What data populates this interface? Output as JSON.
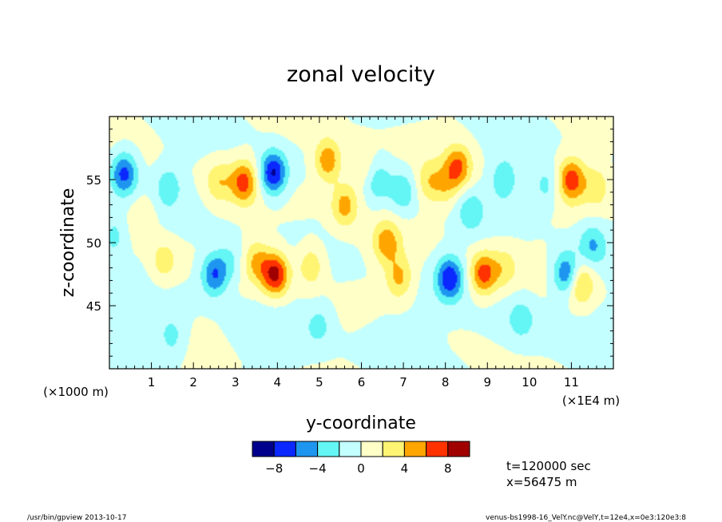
{
  "chart_data": {
    "type": "heatmap",
    "title": "zonal velocity",
    "xlabel": "y-coordinate",
    "ylabel": "z-coordinate",
    "x_unit_label": "(×1E4 m)",
    "y_unit_label": "(×1000 m)",
    "xlim": [
      0,
      12
    ],
    "ylim": [
      40,
      60
    ],
    "x_ticks": [
      {
        "value": 1,
        "label": "1"
      },
      {
        "value": 2,
        "label": "2"
      },
      {
        "value": 3,
        "label": "3"
      },
      {
        "value": 4,
        "label": "4"
      },
      {
        "value": 5,
        "label": "5"
      },
      {
        "value": 6,
        "label": "6"
      },
      {
        "value": 7,
        "label": "7"
      },
      {
        "value": 8,
        "label": "8"
      },
      {
        "value": 9,
        "label": "9"
      },
      {
        "value": 10,
        "label": "10"
      },
      {
        "value": 11,
        "label": "11"
      }
    ],
    "y_ticks": [
      {
        "value": 45,
        "label": "45"
      },
      {
        "value": 50,
        "label": "50"
      },
      {
        "value": 55,
        "label": "55"
      }
    ],
    "levels": [
      -10,
      -8,
      -6,
      -4,
      -2,
      0,
      2,
      4,
      6,
      8,
      10
    ],
    "colors": [
      "#00008c",
      "#0a28ff",
      "#1e96f0",
      "#64f5f5",
      "#c3ffff",
      "#ffffc8",
      "#fff573",
      "#ffa500",
      "#ff3200",
      "#a00000"
    ],
    "colorbar_labels": [
      {
        "value": -8,
        "label": "−8"
      },
      {
        "value": -4,
        "label": "−4"
      },
      {
        "value": 0,
        "label": "0"
      },
      {
        "value": 4,
        "label": "4"
      },
      {
        "value": 8,
        "label": "8"
      }
    ],
    "features": [
      {
        "y": 0.35,
        "z": 55.5,
        "amp": -7.0
      },
      {
        "y": 1.4,
        "z": 54.5,
        "amp": -3.2
      },
      {
        "y": 2.6,
        "z": 54.8,
        "amp": 3.5
      },
      {
        "y": 3.2,
        "z": 54.8,
        "amp": 6.5
      },
      {
        "y": 3.9,
        "z": 55.5,
        "amp": -8.6
      },
      {
        "y": 5.2,
        "z": 56.5,
        "amp": 6.0
      },
      {
        "y": 5.6,
        "z": 53.0,
        "amp": 5.0
      },
      {
        "y": 6.0,
        "z": 56.0,
        "amp": 2.5
      },
      {
        "y": 6.4,
        "z": 54.8,
        "amp": -3.0
      },
      {
        "y": 7.0,
        "z": 54.0,
        "amp": -3.5
      },
      {
        "y": 7.6,
        "z": 54.8,
        "amp": 3.2
      },
      {
        "y": 8.3,
        "z": 56.0,
        "amp": 6.0
      },
      {
        "y": 8.0,
        "z": 54.5,
        "amp": 3.0
      },
      {
        "y": 9.4,
        "z": 55.0,
        "amp": -3.6
      },
      {
        "y": 8.6,
        "z": 52.5,
        "amp": -3.0
      },
      {
        "y": 10.4,
        "z": 54.5,
        "amp": -3.0
      },
      {
        "y": 11.0,
        "z": 55.0,
        "amp": 7.0
      },
      {
        "y": 11.6,
        "z": 54.5,
        "amp": 3.0
      },
      {
        "y": 1.3,
        "z": 48.5,
        "amp": 3.2
      },
      {
        "y": 2.5,
        "z": 47.5,
        "amp": -6.5
      },
      {
        "y": 2.9,
        "z": 48.5,
        "amp": -2.5
      },
      {
        "y": 3.5,
        "z": 48.5,
        "amp": 4.0
      },
      {
        "y": 3.95,
        "z": 47.5,
        "amp": 8.5
      },
      {
        "y": 4.8,
        "z": 48.2,
        "amp": 3.8
      },
      {
        "y": 0.8,
        "z": 52.0,
        "amp": 2.2
      },
      {
        "y": 6.6,
        "z": 50.0,
        "amp": 5.0
      },
      {
        "y": 6.9,
        "z": 47.2,
        "amp": 4.5
      },
      {
        "y": 8.1,
        "z": 47.2,
        "amp": -7.5
      },
      {
        "y": 8.9,
        "z": 47.5,
        "amp": 7.0
      },
      {
        "y": 9.4,
        "z": 48.0,
        "amp": 2.8
      },
      {
        "y": 10.9,
        "z": 47.5,
        "amp": -7.0
      },
      {
        "y": 11.2,
        "z": 46.8,
        "amp": 5.5
      },
      {
        "y": 11.5,
        "z": 49.8,
        "amp": -4.0
      },
      {
        "y": 0.1,
        "z": 50.5,
        "amp": -3.0
      },
      {
        "y": 5.0,
        "z": 43.5,
        "amp": -2.5
      },
      {
        "y": 1.5,
        "z": 42.5,
        "amp": -2.5
      },
      {
        "y": 9.8,
        "z": 44.0,
        "amp": -2.5
      }
    ]
  },
  "info": {
    "time": "t=120000 sec",
    "xpos": "x=56475 m"
  },
  "footer": {
    "left": "/usr/bin/gpview  2013-10-17",
    "right": "venus-bs1998-16_VelY.nc@VelY,t=12e4,x=0e3:120e3:8"
  }
}
